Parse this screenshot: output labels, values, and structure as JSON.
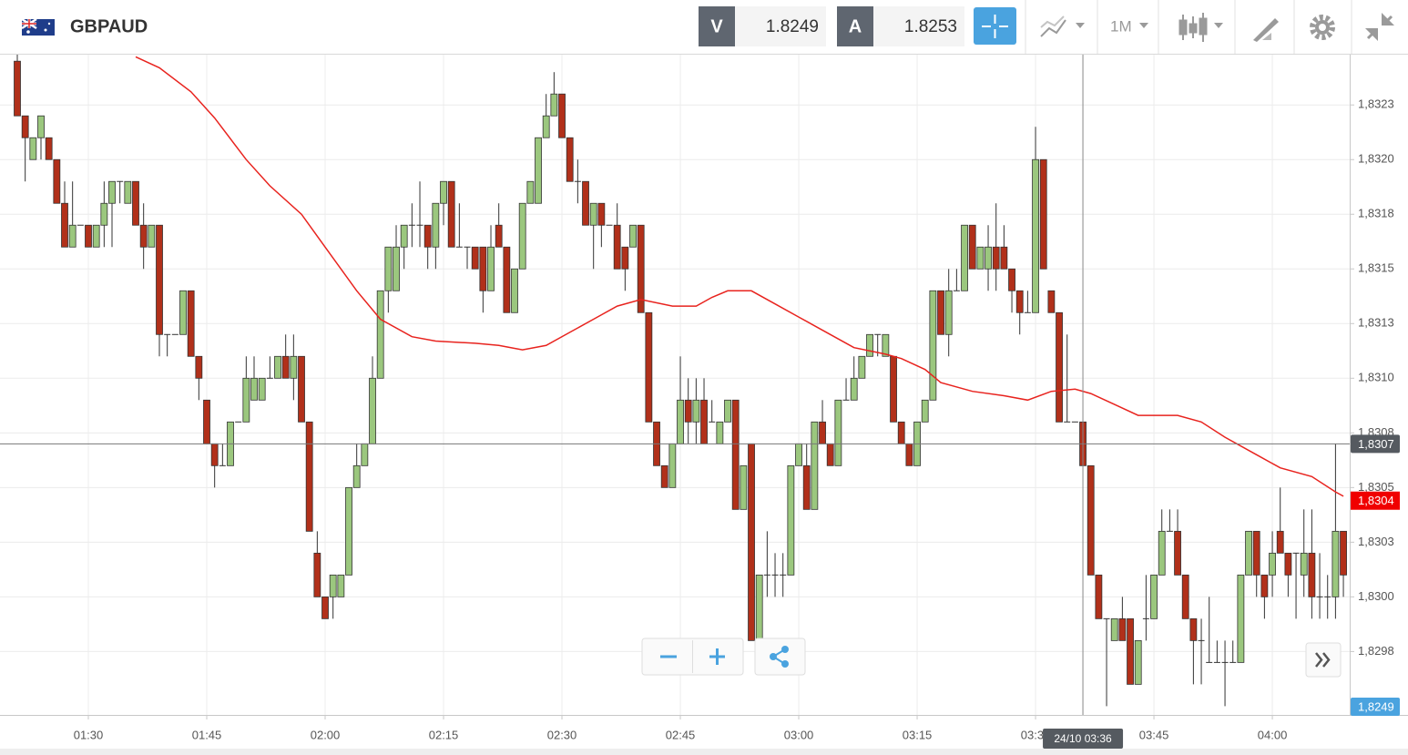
{
  "header": {
    "symbol": "GBPAUD",
    "sell_label": "V",
    "sell_price": "1.8249",
    "buy_label": "A",
    "buy_price": "1.8253",
    "timeframe": "1M"
  },
  "chart_data": {
    "type": "candlestick",
    "up_color": "#9bc77e",
    "down_color": "#b1301a",
    "grid": true,
    "x": [
      "01:21",
      "01:22",
      "01:23",
      "01:24",
      "01:25",
      "01:26",
      "01:27",
      "01:28",
      "01:29",
      "01:30",
      "01:31",
      "01:32",
      "01:33",
      "01:34",
      "01:35",
      "01:36",
      "01:37",
      "01:38",
      "01:39",
      "01:40",
      "01:41",
      "01:42",
      "01:43",
      "01:44",
      "01:45",
      "01:46",
      "01:47",
      "01:48",
      "01:49",
      "01:50",
      "01:51",
      "01:52",
      "01:53",
      "01:54",
      "01:55",
      "01:56",
      "01:57",
      "01:58",
      "01:59",
      "02:00",
      "02:01",
      "02:02",
      "02:03",
      "02:04",
      "02:05",
      "02:06",
      "02:07",
      "02:08",
      "02:09",
      "02:10",
      "02:11",
      "02:12",
      "02:13",
      "02:14",
      "02:15",
      "02:16",
      "02:17",
      "02:18",
      "02:19",
      "02:20",
      "02:21",
      "02:22",
      "02:23",
      "02:24",
      "02:25",
      "02:26",
      "02:27",
      "02:28",
      "02:29",
      "02:30",
      "02:31",
      "02:32",
      "02:33",
      "02:34",
      "02:35",
      "02:36",
      "02:37",
      "02:38",
      "02:39",
      "02:40",
      "02:41",
      "02:42",
      "02:43",
      "02:44",
      "02:45",
      "02:46",
      "02:47",
      "02:48",
      "02:49",
      "02:50",
      "02:51",
      "02:52",
      "02:53",
      "02:54",
      "02:55",
      "02:56",
      "02:57",
      "02:58",
      "02:59",
      "03:00",
      "03:01",
      "03:02",
      "03:03",
      "03:04",
      "03:05",
      "03:06",
      "03:07",
      "03:08",
      "03:09",
      "03:10",
      "03:11",
      "03:12",
      "03:13",
      "03:14",
      "03:15",
      "03:16",
      "03:17",
      "03:18",
      "03:19",
      "03:20",
      "03:21",
      "03:22",
      "03:23",
      "03:24",
      "03:25",
      "03:26",
      "03:27",
      "03:28",
      "03:29",
      "03:30",
      "03:31",
      "03:32",
      "03:33",
      "03:34",
      "03:35",
      "03:36",
      "03:37",
      "03:38",
      "03:39",
      "03:40",
      "03:41",
      "03:42",
      "03:43",
      "03:44",
      "03:45",
      "03:46",
      "03:47",
      "03:48",
      "03:49",
      "03:50",
      "03:51",
      "03:52",
      "03:53",
      "03:54",
      "03:55",
      "03:56",
      "03:57",
      "03:58",
      "03:59",
      "04:00",
      "04:01",
      "04:02",
      "04:03",
      "04:04",
      "04:05",
      "04:06",
      "04:07",
      "04:08",
      "04:09"
    ],
    "open": [
      1.83245,
      1.8322,
      1.832,
      1.8321,
      1.8321,
      1.832,
      1.8318,
      1.8316,
      1.8317,
      1.8317,
      1.8316,
      1.8317,
      1.8318,
      1.8319,
      1.8318,
      1.8319,
      1.8317,
      1.8316,
      1.8317,
      1.8312,
      1.8312,
      1.8312,
      1.8314,
      1.8311,
      1.8309,
      1.8307,
      1.8306,
      1.8306,
      1.8308,
      1.8308,
      1.8309,
      1.8309,
      1.831,
      1.831,
      1.8311,
      1.831,
      1.8311,
      1.8308,
      1.8302,
      1.83,
      1.83,
      1.83,
      1.8301,
      1.8305,
      1.8306,
      1.8307,
      1.831,
      1.8314,
      1.8314,
      1.8316,
      1.8317,
      1.8317,
      1.8317,
      1.8316,
      1.8318,
      1.8319,
      1.8316,
      1.8316,
      1.8316,
      1.8316,
      1.8314,
      1.8317,
      1.8316,
      1.8313,
      1.8315,
      1.8318,
      1.8318,
      1.8321,
      1.8322,
      1.8323,
      1.8321,
      1.8319,
      1.8319,
      1.8317,
      1.8318,
      1.8317,
      1.8317,
      1.8316,
      1.8316,
      1.8317,
      1.8313,
      1.8308,
      1.8306,
      1.8305,
      1.8307,
      1.8309,
      1.8308,
      1.8309,
      1.8308,
      1.8307,
      1.8308,
      1.8309,
      1.8304,
      1.8307,
      1.8298,
      1.8301,
      1.8301,
      1.8301,
      1.8301,
      1.8306,
      1.8306,
      1.8304,
      1.8308,
      1.8307,
      1.8306,
      1.8309,
      1.8309,
      1.831,
      1.8311,
      1.8312,
      1.8311,
      1.8311,
      1.8308,
      1.8307,
      1.8306,
      1.8308,
      1.8309,
      1.8314,
      1.8312,
      1.8314,
      1.8314,
      1.8317,
      1.8315,
      1.8315,
      1.8316,
      1.8316,
      1.8315,
      1.8314,
      1.8313,
      1.8313,
      1.832,
      1.8314,
      1.8313,
      1.8308,
      1.8308,
      1.8308,
      1.8306,
      1.8301,
      1.8299,
      1.8298,
      1.8299,
      1.8299,
      1.8296,
      1.8299,
      1.8299,
      1.8301,
      1.8303,
      1.8303,
      1.8301,
      1.8299,
      1.8298,
      1.8297,
      1.8297,
      1.8297,
      1.8297,
      1.8297,
      1.8301,
      1.8303,
      1.8301,
      1.8301,
      1.8303,
      1.8302,
      1.8302,
      1.8301,
      1.8302,
      1.83,
      1.83,
      1.83,
      1.8303
    ],
    "high": [
      1.83248,
      1.8322,
      1.8321,
      1.8322,
      1.8321,
      1.832,
      1.8319,
      1.8319,
      1.8317,
      1.8317,
      1.8317,
      1.8319,
      1.8319,
      1.8319,
      1.8319,
      1.8319,
      1.8318,
      1.8317,
      1.8317,
      1.8312,
      1.8312,
      1.8314,
      1.8314,
      1.8311,
      1.8309,
      1.8307,
      1.8307,
      1.8308,
      1.8308,
      1.8311,
      1.8311,
      1.831,
      1.8311,
      1.8311,
      1.8312,
      1.8312,
      1.8311,
      1.8308,
      1.8303,
      1.83,
      1.8301,
      1.8301,
      1.8305,
      1.8307,
      1.8307,
      1.8311,
      1.8314,
      1.8316,
      1.8317,
      1.8317,
      1.8318,
      1.8319,
      1.8317,
      1.8318,
      1.8319,
      1.8319,
      1.8318,
      1.8316,
      1.8316,
      1.8316,
      1.8317,
      1.8318,
      1.8316,
      1.8315,
      1.8318,
      1.8319,
      1.8321,
      1.8323,
      1.8324,
      1.8323,
      1.8321,
      1.832,
      1.8319,
      1.8318,
      1.8318,
      1.8317,
      1.8318,
      1.8316,
      1.8317,
      1.8317,
      1.8313,
      1.8308,
      1.8306,
      1.8307,
      1.8311,
      1.831,
      1.831,
      1.831,
      1.8309,
      1.8308,
      1.8309,
      1.8309,
      1.8306,
      1.8307,
      1.8301,
      1.8303,
      1.8302,
      1.8302,
      1.8306,
      1.8307,
      1.8307,
      1.8308,
      1.8309,
      1.8307,
      1.8309,
      1.831,
      1.8311,
      1.8311,
      1.8312,
      1.8312,
      1.8312,
      1.8311,
      1.8308,
      1.8307,
      1.8308,
      1.8309,
      1.8314,
      1.8314,
      1.8315,
      1.8315,
      1.8317,
      1.8317,
      1.8316,
      1.8317,
      1.8318,
      1.8317,
      1.8315,
      1.8314,
      1.8314,
      1.83215,
      1.832,
      1.8314,
      1.8313,
      1.8312,
      1.8308,
      1.8308,
      1.8306,
      1.8301,
      1.8299,
      1.8299,
      1.83,
      1.8299,
      1.8298,
      1.8301,
      1.8301,
      1.8304,
      1.8304,
      1.8304,
      1.8301,
      1.8299,
      1.8299,
      1.83,
      1.8298,
      1.8298,
      1.8298,
      1.8301,
      1.8303,
      1.8303,
      1.8301,
      1.8303,
      1.8305,
      1.8302,
      1.8302,
      1.8304,
      1.8304,
      1.8302,
      1.8301,
      1.8307,
      1.8303
    ],
    "low": [
      1.8322,
      1.8319,
      1.832,
      1.832,
      1.832,
      1.8318,
      1.8316,
      1.8316,
      1.8317,
      1.8316,
      1.8316,
      1.8316,
      1.8316,
      1.8318,
      1.8318,
      1.8317,
      1.8315,
      1.8316,
      1.8311,
      1.8311,
      1.8312,
      1.8312,
      1.8311,
      1.8309,
      1.8307,
      1.8305,
      1.8306,
      1.8306,
      1.8308,
      1.8308,
      1.8309,
      1.8309,
      1.831,
      1.831,
      1.831,
      1.8309,
      1.8308,
      1.8303,
      1.83,
      1.8299,
      1.8299,
      1.83,
      1.8301,
      1.8305,
      1.8306,
      1.8307,
      1.831,
      1.8313,
      1.8314,
      1.8315,
      1.8316,
      1.8316,
      1.8315,
      1.8315,
      1.8317,
      1.8316,
      1.8316,
      1.8315,
      1.8315,
      1.8313,
      1.8314,
      1.8316,
      1.8313,
      1.8313,
      1.8315,
      1.8318,
      1.8318,
      1.8321,
      1.8322,
      1.8321,
      1.8319,
      1.8318,
      1.8317,
      1.8315,
      1.8316,
      1.8317,
      1.8315,
      1.8314,
      1.8316,
      1.8313,
      1.8308,
      1.8306,
      1.8305,
      1.8305,
      1.8307,
      1.8307,
      1.8307,
      1.8307,
      1.8308,
      1.8307,
      1.8308,
      1.8304,
      1.8304,
      1.8298,
      1.8298,
      1.83,
      1.83,
      1.83,
      1.8301,
      1.8306,
      1.8304,
      1.8304,
      1.8307,
      1.8306,
      1.8306,
      1.8309,
      1.8309,
      1.831,
      1.8311,
      1.8311,
      1.8311,
      1.8308,
      1.8307,
      1.8306,
      1.8306,
      1.8308,
      1.8309,
      1.8312,
      1.8311,
      1.8314,
      1.8314,
      1.8315,
      1.8315,
      1.8314,
      1.8314,
      1.8315,
      1.8313,
      1.8312,
      1.8313,
      1.8313,
      1.8315,
      1.8313,
      1.8308,
      1.8308,
      1.8308,
      1.8306,
      1.8301,
      1.8299,
      1.8295,
      1.8298,
      1.8298,
      1.8296,
      1.8296,
      1.8298,
      1.8299,
      1.8301,
      1.8303,
      1.8301,
      1.8299,
      1.8296,
      1.8296,
      1.8297,
      1.8297,
      1.8295,
      1.8297,
      1.8297,
      1.8301,
      1.83,
      1.8299,
      1.83,
      1.8302,
      1.83,
      1.8299,
      1.83,
      1.8299,
      1.8299,
      1.8299,
      1.8299,
      1.83
    ],
    "close": [
      1.8322,
      1.8321,
      1.8321,
      1.8322,
      1.832,
      1.8318,
      1.8316,
      1.8317,
      1.8317,
      1.8316,
      1.8317,
      1.8318,
      1.8319,
      1.8319,
      1.8319,
      1.8317,
      1.8316,
      1.8317,
      1.8312,
      1.8312,
      1.8312,
      1.8314,
      1.8311,
      1.831,
      1.8307,
      1.8306,
      1.8306,
      1.8308,
      1.8308,
      1.831,
      1.831,
      1.831,
      1.831,
      1.8311,
      1.831,
      1.8311,
      1.8308,
      1.8303,
      1.83,
      1.8299,
      1.8301,
      1.8301,
      1.8305,
      1.8306,
      1.8307,
      1.831,
      1.8314,
      1.8316,
      1.8316,
      1.8317,
      1.8317,
      1.8317,
      1.8316,
      1.8318,
      1.8319,
      1.8316,
      1.8316,
      1.8316,
      1.8315,
      1.8314,
      1.8316,
      1.8316,
      1.8313,
      1.8315,
      1.8318,
      1.8319,
      1.8321,
      1.8322,
      1.8323,
      1.8321,
      1.8319,
      1.8319,
      1.8317,
      1.8318,
      1.8317,
      1.8317,
      1.8315,
      1.8315,
      1.8317,
      1.8313,
      1.8308,
      1.8306,
      1.8305,
      1.8307,
      1.8309,
      1.8308,
      1.8309,
      1.8307,
      1.8308,
      1.8308,
      1.8309,
      1.8304,
      1.8306,
      1.8298,
      1.8301,
      1.8301,
      1.8301,
      1.8301,
      1.8306,
      1.8307,
      1.8304,
      1.8308,
      1.8307,
      1.8306,
      1.8309,
      1.8309,
      1.831,
      1.8311,
      1.8312,
      1.8312,
      1.8312,
      1.8308,
      1.8307,
      1.8306,
      1.8308,
      1.8309,
      1.8314,
      1.8312,
      1.8314,
      1.8314,
      1.8317,
      1.8315,
      1.8316,
      1.8316,
      1.8315,
      1.8315,
      1.8314,
      1.8313,
      1.8313,
      1.832,
      1.8315,
      1.8313,
      1.8308,
      1.8308,
      1.8308,
      1.8306,
      1.8301,
      1.8299,
      1.8299,
      1.8299,
      1.8298,
      1.8296,
      1.8298,
      1.8299,
      1.8301,
      1.8303,
      1.8303,
      1.8301,
      1.8299,
      1.8298,
      1.8298,
      1.8297,
      1.8297,
      1.8297,
      1.8297,
      1.8301,
      1.8303,
      1.8301,
      1.83,
      1.8302,
      1.8302,
      1.8301,
      1.8302,
      1.8302,
      1.83,
      1.83,
      1.83,
      1.8303,
      1.8301
    ],
    "moving_average": {
      "color": "#e8231e",
      "x": [
        "01:36",
        "01:39",
        "01:43",
        "01:46",
        "01:50",
        "01:53",
        "01:57",
        "02:00",
        "02:04",
        "02:07",
        "02:11",
        "02:14",
        "02:19",
        "02:22",
        "02:25",
        "02:28",
        "02:31",
        "02:34",
        "02:37",
        "02:40",
        "02:44",
        "02:47",
        "02:49",
        "02:51",
        "02:54",
        "02:57",
        "03:00",
        "03:04",
        "03:07",
        "03:11",
        "03:13",
        "03:16",
        "03:18",
        "03:22",
        "03:26",
        "03:29",
        "03:32",
        "03:35",
        "03:37",
        "03:40",
        "03:43",
        "03:46",
        "03:48",
        "03:51",
        "03:54",
        "03:58",
        "04:01",
        "04:05",
        "04:08",
        "04:09"
      ],
      "values": [
        1.83247,
        1.83242,
        1.83231,
        1.83219,
        1.832,
        1.83188,
        1.83175,
        1.8316,
        1.8314,
        1.83127,
        1.83119,
        1.83117,
        1.83116,
        1.83115,
        1.83113,
        1.83115,
        1.83121,
        1.83127,
        1.83133,
        1.83136,
        1.83133,
        1.83133,
        1.83137,
        1.8314,
        1.8314,
        1.83134,
        1.83128,
        1.8312,
        1.83114,
        1.83111,
        1.83109,
        1.83104,
        1.83098,
        1.83094,
        1.83092,
        1.8309,
        1.83094,
        1.83095,
        1.83093,
        1.83088,
        1.83083,
        1.83083,
        1.83083,
        1.8308,
        1.83073,
        1.83065,
        1.83059,
        1.83055,
        1.83048,
        1.83046
      ]
    },
    "ylim": [
      1.82946,
      1.83248
    ],
    "yticks": [
      {
        "value": 1.82975,
        "label": "1,8298"
      },
      {
        "value": 1.83,
        "label": "1,8300"
      },
      {
        "value": 1.83025,
        "label": "1,8303"
      },
      {
        "value": 1.8305,
        "label": "1,8305"
      },
      {
        "value": 1.83075,
        "label": "1,8308"
      },
      {
        "value": 1.831,
        "label": "1,8310"
      },
      {
        "value": 1.83125,
        "label": "1,8313"
      },
      {
        "value": 1.8315,
        "label": "1,8315"
      },
      {
        "value": 1.83175,
        "label": "1,8318"
      },
      {
        "value": 1.832,
        "label": "1,8320"
      },
      {
        "value": 1.83225,
        "label": "1,8323"
      }
    ],
    "xticks": [
      "01:30",
      "01:45",
      "02:00",
      "02:15",
      "02:30",
      "02:45",
      "03:00",
      "03:15",
      "03:30",
      "03:45",
      "04:00"
    ],
    "price_line": {
      "value": 1.8307,
      "label": "1,8307"
    },
    "ma_tag": {
      "value": 1.83044,
      "label": "1,8304"
    },
    "bid_tag": "1,8249",
    "crosshair": {
      "x": "03:36",
      "label": "24/10 03:36"
    }
  }
}
